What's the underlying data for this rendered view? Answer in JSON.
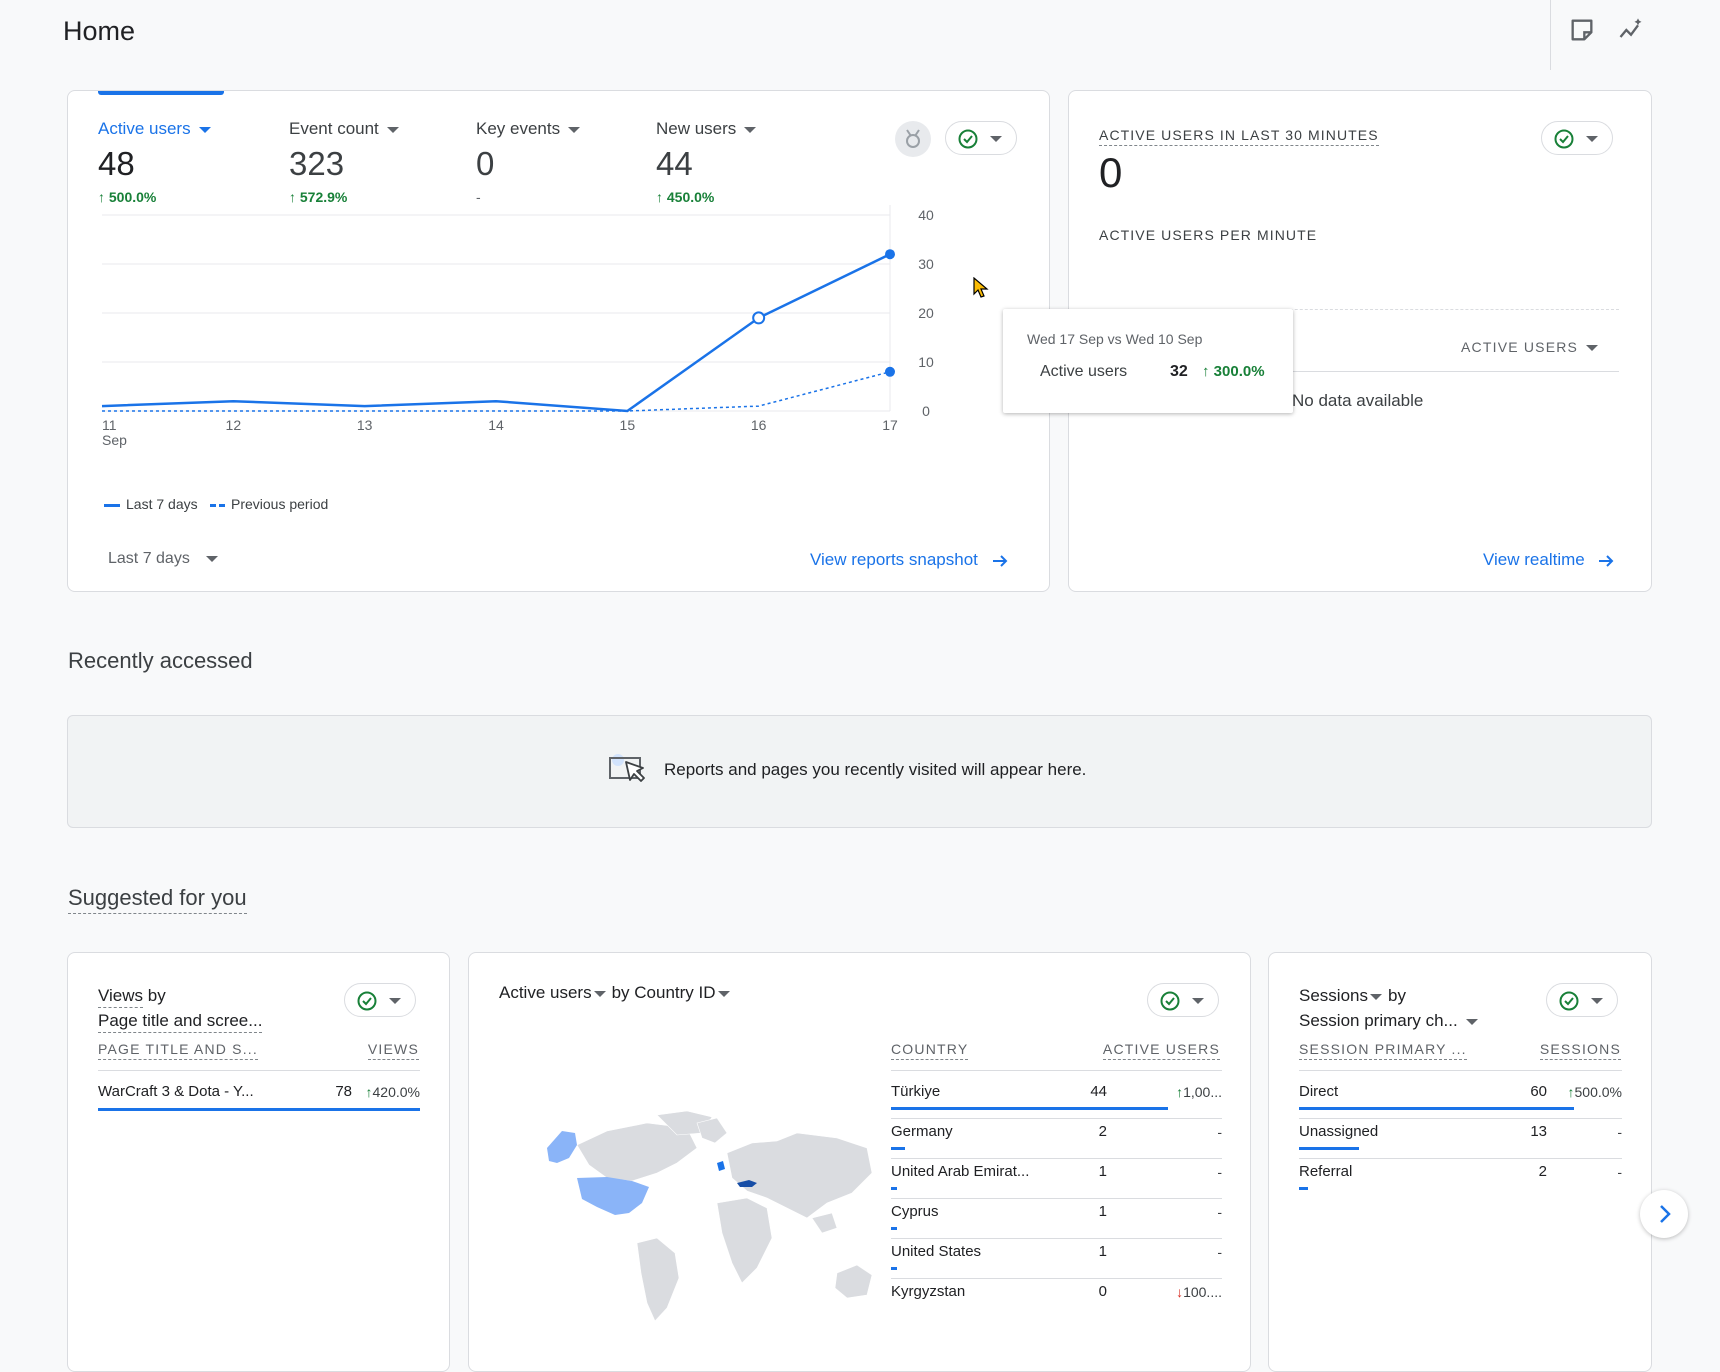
{
  "page_title": "Home",
  "overview": {
    "metrics": [
      {
        "label": "Active users",
        "value": "48",
        "change": "500.0%"
      },
      {
        "label": "Event count",
        "value": "323",
        "change": "572.9%"
      },
      {
        "label": "Key events",
        "value": "0",
        "change": "-"
      },
      {
        "label": "New users",
        "value": "44",
        "change": "450.0%"
      }
    ],
    "legend_current": "Last 7 days",
    "legend_previous": "Previous period",
    "date_range": "Last 7 days",
    "link": "View reports snapshot",
    "tooltip": {
      "date": "Wed 17 Sep vs Wed 10 Sep",
      "metric": "Active users",
      "value": "32",
      "change": "300.0%"
    }
  },
  "chart_data": {
    "type": "line",
    "x": [
      "11",
      "12",
      "13",
      "14",
      "15",
      "16",
      "17"
    ],
    "x_sublabel": "Sep",
    "y_ticks": [
      "0",
      "10",
      "20",
      "30",
      "40"
    ],
    "ylim": [
      0,
      40
    ],
    "series": [
      {
        "name": "Last 7 days",
        "values": [
          1,
          2,
          1,
          2,
          0,
          19,
          32
        ],
        "style": "solid"
      },
      {
        "name": "Previous period",
        "values": [
          0,
          0,
          0,
          0,
          0,
          1,
          8
        ],
        "style": "dashed"
      }
    ],
    "colors": {
      "line": "#1a73e8",
      "grid": "#e8eaed"
    }
  },
  "realtime": {
    "title": "ACTIVE USERS IN LAST 30 MINUTES",
    "value": "0",
    "per_minute_title": "ACTIVE USERS PER MINUTE",
    "col_header": "ACTIVE USERS",
    "empty": "No data available",
    "link": "View realtime"
  },
  "recently": {
    "title": "Recently accessed",
    "message": "Reports and pages you recently visited will appear here."
  },
  "suggested": {
    "title": "Suggested for you",
    "views_card": {
      "title_a": "Views",
      "title_by": "by",
      "title_b": "Page title and scree...",
      "col1": "PAGE TITLE AND S...",
      "col2": "VIEWS",
      "rows": [
        {
          "name": "WarCraft 3 & Dota - Y...",
          "value": "78",
          "change": "420.0%",
          "bar": 1.0
        }
      ]
    },
    "country_card": {
      "title_a": "Active users",
      "title_b": "by Country ID",
      "col1": "COUNTRY",
      "col2": "ACTIVE USERS",
      "rows": [
        {
          "name": "Türkiye",
          "value": "44",
          "change": "1,00...",
          "dir": "up",
          "bar": 1.0
        },
        {
          "name": "Germany",
          "value": "2",
          "change": "-",
          "dir": "none",
          "bar": 0.05
        },
        {
          "name": "United Arab Emirat...",
          "value": "1",
          "change": "-",
          "dir": "none",
          "bar": 0.023
        },
        {
          "name": "Cyprus",
          "value": "1",
          "change": "-",
          "dir": "none",
          "bar": 0.023
        },
        {
          "name": "United States",
          "value": "1",
          "change": "-",
          "dir": "none",
          "bar": 0.023
        },
        {
          "name": "Kyrgyzstan",
          "value": "0",
          "change": "100....",
          "dir": "down",
          "bar": 0
        }
      ]
    },
    "sessions_card": {
      "title_a": "Sessions",
      "title_by": "by",
      "title_b": "Session primary ch...",
      "col1": "SESSION PRIMARY ...",
      "col2": "SESSIONS",
      "rows": [
        {
          "name": "Direct",
          "value": "60",
          "change": "500.0%",
          "dir": "up",
          "bar": 1.0
        },
        {
          "name": "Unassigned",
          "value": "13",
          "change": "-",
          "dir": "none",
          "bar": 0.217
        },
        {
          "name": "Referral",
          "value": "2",
          "change": "-",
          "dir": "none",
          "bar": 0.033
        }
      ]
    }
  }
}
